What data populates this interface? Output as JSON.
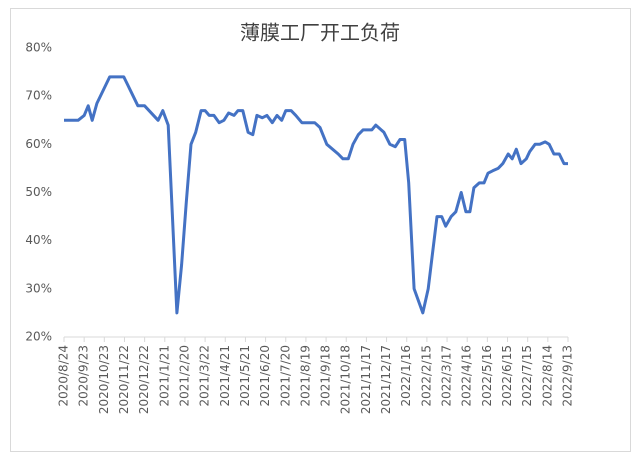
{
  "chart_data": {
    "type": "line",
    "title": "薄膜工厂开工负荷",
    "x": [
      "2020/8/24",
      "2020/9/14",
      "2020/9/23",
      "2020/9/29",
      "2020/10/5",
      "2020/10/12",
      "2020/10/31",
      "2020/11/21",
      "2020/12/12",
      "2020/12/22",
      "2021/1/11",
      "2021/1/18",
      "2021/1/26",
      "2021/2/8",
      "2021/2/15",
      "2021/2/22",
      "2021/3/1",
      "2021/3/8",
      "2021/3/16",
      "2021/3/22",
      "2021/3/28",
      "2021/4/4",
      "2021/4/12",
      "2021/4/19",
      "2021/4/26",
      "2021/5/4",
      "2021/5/10",
      "2021/5/17",
      "2021/5/25",
      "2021/6/1",
      "2021/6/7",
      "2021/6/15",
      "2021/6/22",
      "2021/6/30",
      "2021/7/7",
      "2021/7/14",
      "2021/7/20",
      "2021/7/28",
      "2021/8/4",
      "2021/8/13",
      "2021/9/1",
      "2021/9/9",
      "2021/9/19",
      "2021/10/6",
      "2021/10/13",
      "2021/10/21",
      "2021/10/28",
      "2021/11/5",
      "2021/11/12",
      "2021/11/25",
      "2021/12/1",
      "2021/12/13",
      "2021/12/22",
      "2021/12/30",
      "2022/1/6",
      "2022/1/13",
      "2022/1/19",
      "2022/1/27",
      "2022/2/9",
      "2022/2/17",
      "2022/2/23",
      "2022/3/2",
      "2022/3/9",
      "2022/3/15",
      "2022/3/23",
      "2022/3/30",
      "2022/4/7",
      "2022/4/14",
      "2022/4/20",
      "2022/4/26",
      "2022/5/4",
      "2022/5/11",
      "2022/5/17",
      "2022/5/24",
      "2022/6/1",
      "2022/6/8",
      "2022/6/16",
      "2022/6/22",
      "2022/6/28",
      "2022/7/5",
      "2022/7/13",
      "2022/7/18",
      "2022/7/26",
      "2022/8/2",
      "2022/8/10",
      "2022/8/16",
      "2022/8/23",
      "2022/8/31",
      "2022/9/7",
      "2022/9/13"
    ],
    "series": [
      {
        "color": "#4472c4",
        "values": [
          65,
          65,
          66,
          68,
          65,
          68.5,
          74,
          74,
          68,
          68,
          65,
          67,
          64,
          25,
          35,
          48,
          60,
          62.5,
          67,
          67,
          66,
          66,
          64.5,
          65,
          66.5,
          66,
          67,
          67,
          62.5,
          62,
          66,
          65.5,
          66,
          64.5,
          66,
          65,
          67,
          67,
          66,
          64.5,
          64.5,
          63.5,
          60,
          58,
          57,
          57,
          60,
          62,
          63,
          63,
          64,
          62.5,
          60,
          59.5,
          61,
          61,
          52,
          30,
          25,
          30,
          37,
          45,
          45,
          43,
          45,
          46,
          50,
          46,
          46,
          51,
          52,
          52,
          54,
          54.5,
          55,
          56,
          58,
          57,
          59,
          56,
          57,
          58.5,
          60,
          60,
          60.5,
          60,
          58,
          58,
          56,
          56
        ]
      }
    ],
    "xlim": [
      "2020/8/24",
      "2022/9/13"
    ],
    "xticks": [
      "2020/8/24",
      "2020/9/23",
      "2020/10/23",
      "2020/11/22",
      "2020/12/22",
      "2021/1/21",
      "2021/2/20",
      "2021/3/22",
      "2021/4/21",
      "2021/5/21",
      "2021/6/20",
      "2021/7/20",
      "2021/8/19",
      "2021/9/18",
      "2021/10/18",
      "2021/11/17",
      "2021/12/17",
      "2022/1/16",
      "2022/2/15",
      "2022/3/17",
      "2022/4/16",
      "2022/5/16",
      "2022/6/15",
      "2022/7/15",
      "2022/8/14",
      "2022/9/13"
    ],
    "ylim": [
      20,
      80
    ],
    "yticks": [
      {
        "value": 20,
        "label": "20%"
      },
      {
        "value": 30,
        "label": "30%"
      },
      {
        "value": 40,
        "label": "40%"
      },
      {
        "value": 50,
        "label": "50%"
      },
      {
        "value": 60,
        "label": "60%"
      },
      {
        "value": 70,
        "label": "70%"
      },
      {
        "value": 80,
        "label": "80%"
      }
    ]
  }
}
